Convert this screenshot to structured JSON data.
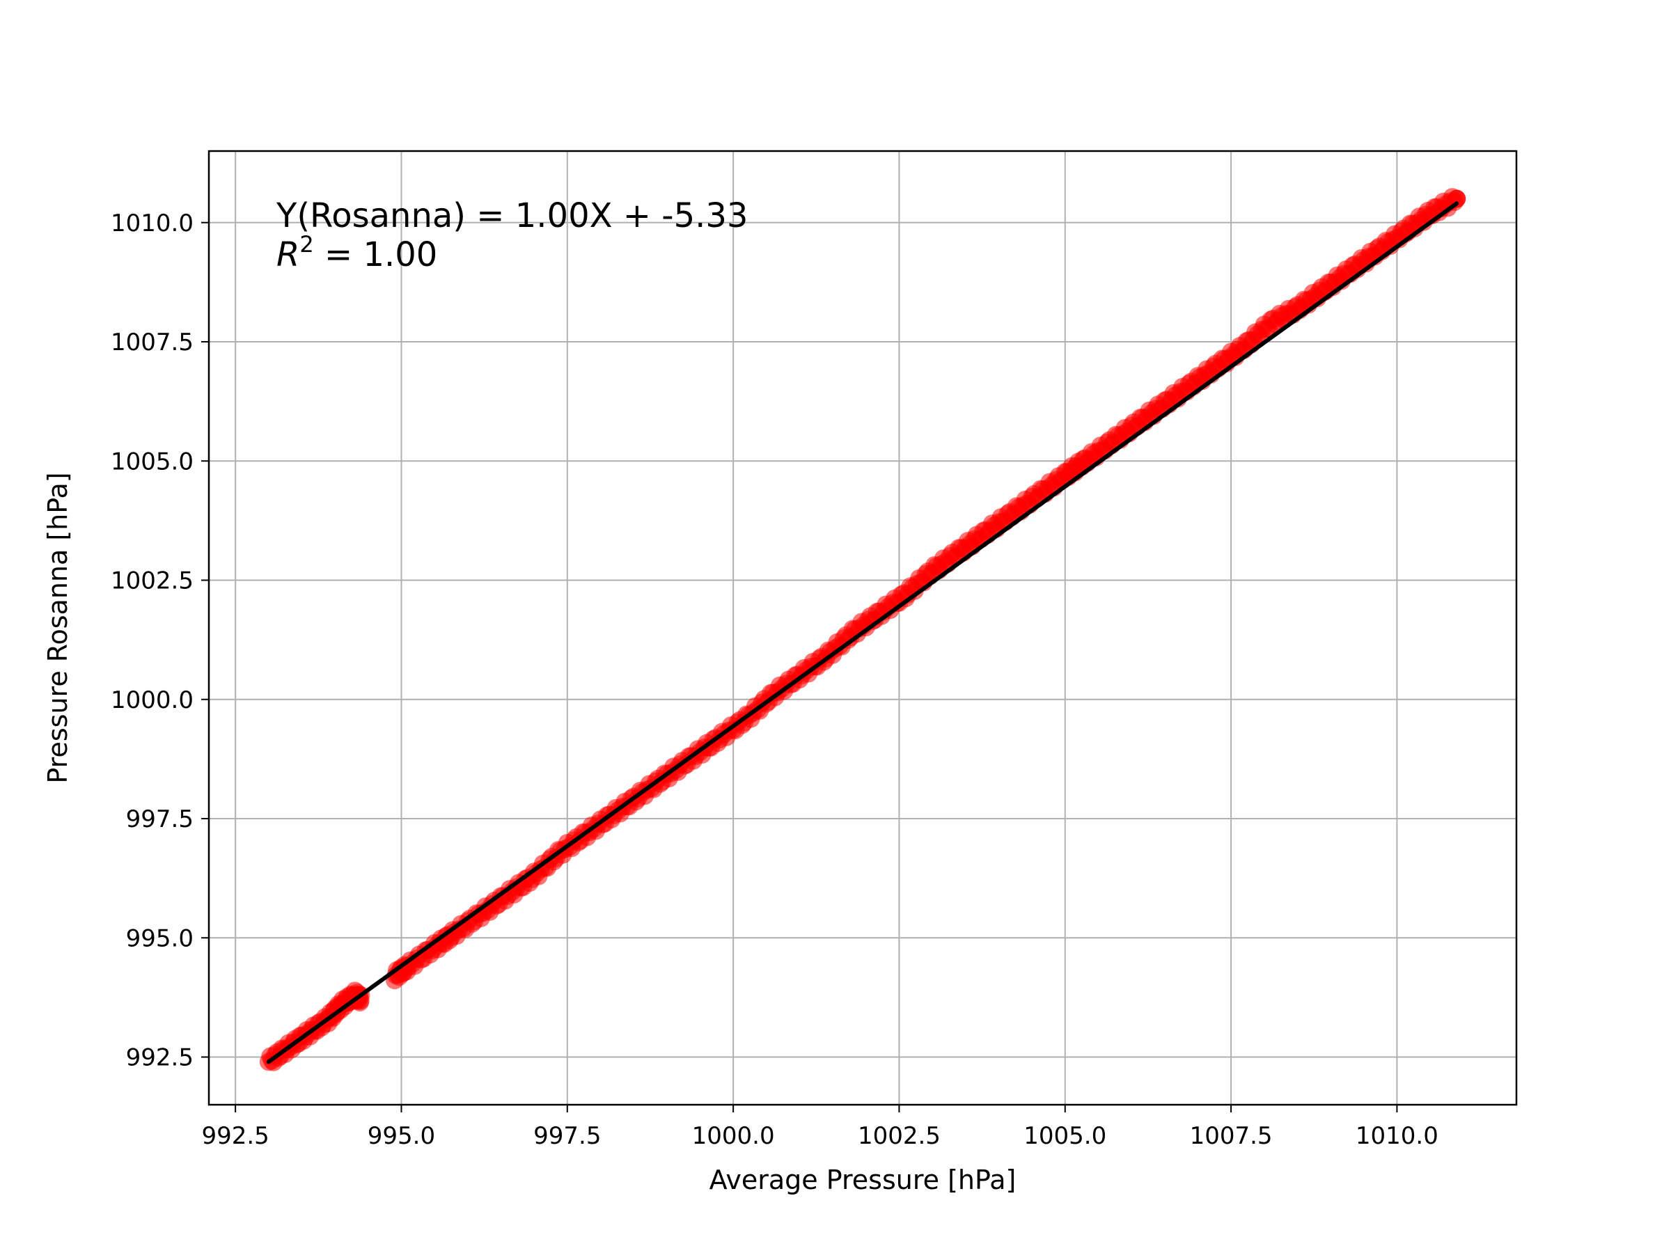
{
  "chart_data": {
    "type": "scatter",
    "xlabel": "Average Pressure [hPa]",
    "ylabel": "Pressure Rosanna [hPa]",
    "xlim": [
      992.1,
      1011.8
    ],
    "ylim": [
      991.5,
      1011.5
    ],
    "x_ticks": [
      992.5,
      995.0,
      997.5,
      1000.0,
      1002.5,
      1005.0,
      1007.5,
      1010.0
    ],
    "x_tick_labels": [
      "992.5",
      "995.0",
      "997.5",
      "1000.0",
      "1002.5",
      "1005.0",
      "1007.5",
      "1010.0"
    ],
    "y_ticks": [
      992.5,
      995.0,
      997.5,
      1000.0,
      1002.5,
      1005.0,
      1007.5,
      1010.0
    ],
    "y_tick_labels": [
      "992.5",
      "995.0",
      "997.5",
      "1000.0",
      "1002.5",
      "1005.0",
      "1007.5",
      "1010.0"
    ],
    "grid": true,
    "annotation": {
      "equation": "Y(Rosanna) = 1.00X + -5.33",
      "r2_symbol": "R",
      "r2_exponent": "2",
      "r2_value": " = 1.00"
    },
    "series": [
      {
        "type": "scatter",
        "color": "#ff0000",
        "points": [
          [
            993.0,
            992.4
          ],
          [
            993.3,
            992.7
          ],
          [
            993.6,
            993.0
          ],
          [
            993.9,
            993.3
          ],
          [
            994.1,
            993.6
          ],
          [
            994.3,
            993.8
          ],
          [
            994.4,
            993.7
          ],
          [
            994.9,
            994.2
          ],
          [
            995.1,
            994.4
          ],
          [
            995.5,
            994.8
          ],
          [
            995.8,
            995.1
          ],
          [
            996.2,
            995.5
          ],
          [
            996.6,
            995.9
          ],
          [
            997.0,
            996.3
          ],
          [
            997.4,
            996.8
          ],
          [
            997.8,
            997.2
          ],
          [
            998.2,
            997.6
          ],
          [
            998.6,
            998.0
          ],
          [
            999.0,
            998.4
          ],
          [
            999.4,
            998.8
          ],
          [
            999.8,
            999.2
          ],
          [
            1000.2,
            999.6
          ],
          [
            1000.6,
            1000.1
          ],
          [
            1001.0,
            1000.5
          ],
          [
            1001.4,
            1000.9
          ],
          [
            1001.8,
            1001.4
          ],
          [
            1002.2,
            1001.8
          ],
          [
            1002.6,
            1002.2
          ],
          [
            1003.0,
            1002.7
          ],
          [
            1003.4,
            1003.1
          ],
          [
            1003.8,
            1003.5
          ],
          [
            1004.2,
            1003.9
          ],
          [
            1004.6,
            1004.3
          ],
          [
            1005.0,
            1004.7
          ],
          [
            1005.3,
            1005.0
          ],
          [
            1005.7,
            1005.4
          ],
          [
            1006.1,
            1005.8
          ],
          [
            1006.5,
            1006.2
          ],
          [
            1006.9,
            1006.6
          ],
          [
            1007.3,
            1007.0
          ],
          [
            1007.7,
            1007.4
          ],
          [
            1008.1,
            1007.9
          ],
          [
            1008.5,
            1008.2
          ],
          [
            1008.9,
            1008.6
          ],
          [
            1009.3,
            1009.0
          ],
          [
            1009.7,
            1009.4
          ],
          [
            1010.1,
            1009.8
          ],
          [
            1010.5,
            1010.2
          ],
          [
            1010.9,
            1010.5
          ]
        ]
      },
      {
        "type": "line",
        "color": "#000000",
        "points": [
          [
            993.0,
            992.4
          ],
          [
            1010.9,
            1010.4
          ]
        ]
      }
    ]
  }
}
